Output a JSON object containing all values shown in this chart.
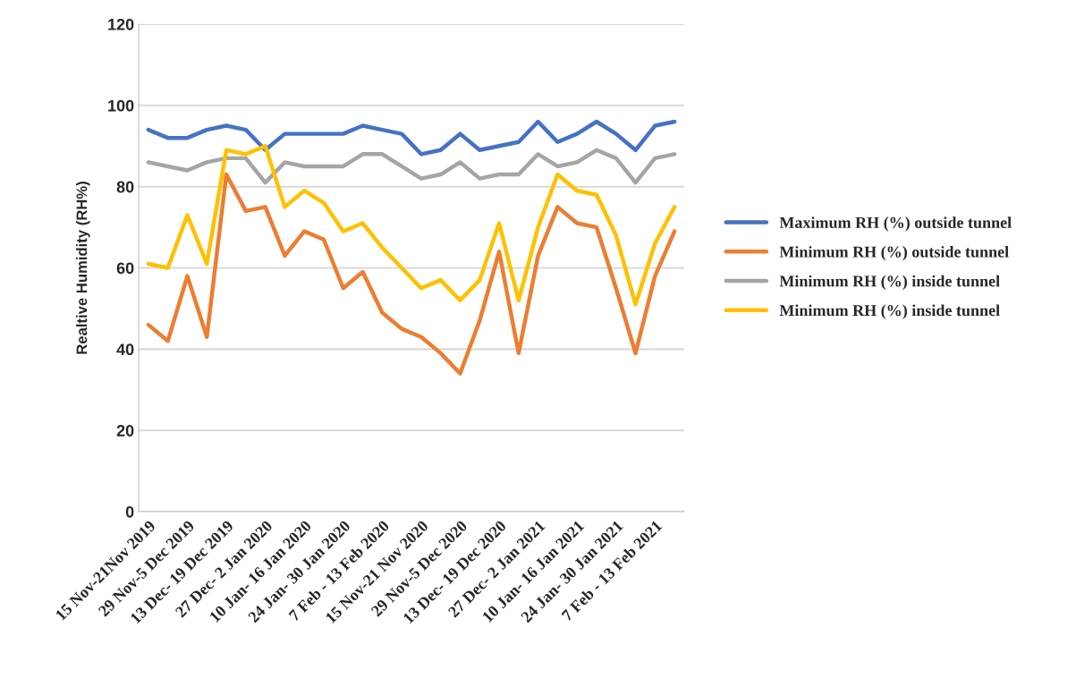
{
  "chart_data": {
    "type": "line",
    "ylabel": "Realtive Humidity (RH%)",
    "categories": [
      "15 Nov-21Nov 2019",
      null,
      "29 Nov-5 Dec 2019",
      null,
      "13 Dec- 19 Dec 2019",
      null,
      "27 Dec- 2 Jan 2020",
      null,
      "10 Jan- 16 Jan 2020",
      null,
      "24 Jan- 30 Jan 2020",
      null,
      "7 Feb - 13 Feb 2020",
      null,
      "15 Nov-21 Nov 2020",
      null,
      "29 Nov-5 Dec 2020",
      null,
      "13 Dec- 19 Dec 2020",
      null,
      "27 Dec- 2 Jan 2021",
      null,
      "10 Jan- 16 Jan 2021",
      null,
      "24 Jan- 30 Jan 2021",
      null,
      "7 Feb - 13 Feb 2021",
      null
    ],
    "series": [
      {
        "name": "Maximum RH (%) outside tunnel",
        "color": "#4472c4",
        "values": [
          94,
          92,
          92,
          94,
          95,
          94,
          89,
          93,
          93,
          93,
          93,
          95,
          94,
          93,
          88,
          89,
          93,
          89,
          90,
          91,
          96,
          91,
          93,
          96,
          93,
          89,
          95,
          96
        ]
      },
      {
        "name": "Minimum RH (%) outside tunnel",
        "color": "#ed7d31",
        "values": [
          46,
          42,
          58,
          43,
          83,
          74,
          75,
          63,
          69,
          67,
          55,
          59,
          49,
          45,
          43,
          39,
          34,
          47,
          64,
          39,
          63,
          75,
          71,
          70,
          55,
          39,
          58,
          69
        ]
      },
      {
        "name": "Minimum RH (%) inside tunnel",
        "color": "#a5a5a5",
        "values": [
          86,
          85,
          84,
          86,
          87,
          87,
          81,
          86,
          85,
          85,
          85,
          88,
          88,
          85,
          82,
          83,
          86,
          82,
          83,
          83,
          88,
          85,
          86,
          89,
          87,
          81,
          87,
          88
        ]
      },
      {
        "name": "Minimum RH (%) inside tunnel",
        "color": "#ffc000",
        "values": [
          61,
          60,
          73,
          61,
          89,
          88,
          90,
          75,
          79,
          76,
          69,
          71,
          65,
          60,
          55,
          57,
          52,
          57,
          71,
          52,
          70,
          83,
          79,
          78,
          68,
          51,
          66,
          75
        ]
      }
    ],
    "ylim": [
      0,
      120
    ],
    "yticks": [
      0,
      20,
      40,
      60,
      80,
      100,
      120
    ],
    "grid": "y",
    "legend": "right",
    "marker": "none",
    "line_style": "solid"
  }
}
